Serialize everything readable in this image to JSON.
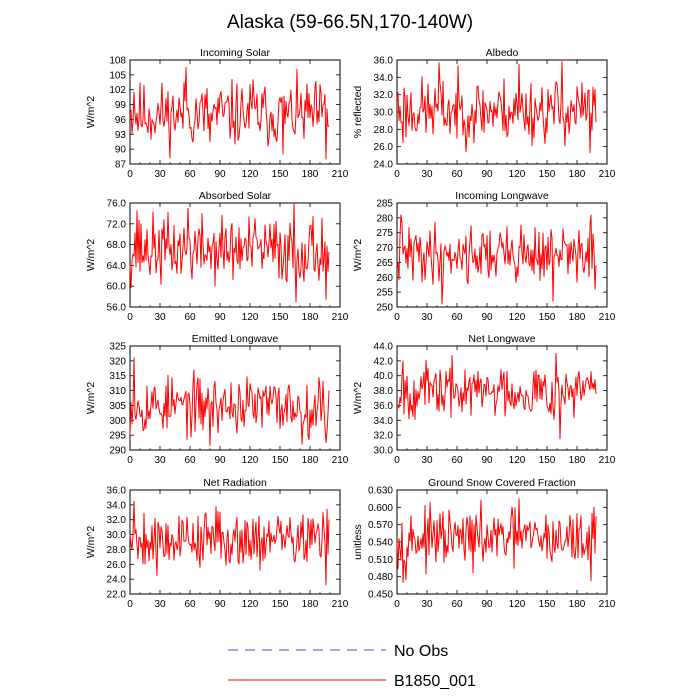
{
  "title": "Alaska (59-66.5N,170-140W)",
  "legend": [
    {
      "label": "No Obs",
      "color": "#4a4ac8",
      "dash": true
    },
    {
      "label": "B1850_001",
      "color": "#ff0000",
      "dash": false
    }
  ],
  "chart_data": [
    {
      "type": "line",
      "title": "Incoming Solar",
      "ylabel": "W/m^2",
      "xlim": [
        0,
        210
      ],
      "xticks": [
        0,
        30,
        60,
        90,
        120,
        150,
        180,
        210
      ],
      "ylim": [
        87,
        108
      ],
      "yticks": [
        87,
        90,
        93,
        96,
        99,
        102,
        105,
        108
      ],
      "ydec": 0,
      "series": [
        {
          "name": "B1850_001",
          "mean": 97,
          "amp": 4,
          "seed": 11,
          "points": [
            [
              0,
              97
            ],
            [
              4,
              101.5
            ],
            [
              56,
              106.5
            ],
            [
              80,
              91.5
            ],
            [
              123,
              104
            ],
            [
              153,
              89
            ],
            [
              196,
              88
            ]
          ]
        }
      ]
    },
    {
      "type": "line",
      "title": "Albedo",
      "ylabel": "% reflected",
      "xlim": [
        0,
        210
      ],
      "xticks": [
        0,
        30,
        60,
        90,
        120,
        150,
        180,
        210
      ],
      "ylim": [
        24,
        36
      ],
      "yticks": [
        24,
        26,
        28,
        30,
        32,
        34,
        36
      ],
      "ydec": 1,
      "series": [
        {
          "name": "B1850_001",
          "mean": 30.2,
          "amp": 2.3,
          "seed": 23,
          "points": [
            [
              0,
              31.5
            ],
            [
              6,
              26.5
            ],
            [
              42,
              35.7
            ],
            [
              122,
              35.5
            ],
            [
              165,
              35.8
            ],
            [
              193,
              25.3
            ]
          ]
        }
      ]
    },
    {
      "type": "line",
      "title": "Absorbed Solar",
      "ylabel": "W/m^2",
      "xlim": [
        0,
        210
      ],
      "xticks": [
        0,
        30,
        60,
        90,
        120,
        150,
        180,
        210
      ],
      "ylim": [
        56,
        76
      ],
      "yticks": [
        56,
        60,
        64,
        68,
        72,
        76
      ],
      "ydec": 1,
      "series": [
        {
          "name": "B1850_001",
          "mean": 67,
          "amp": 4,
          "seed": 37,
          "points": [
            [
              0,
              64
            ],
            [
              7,
              74.5
            ],
            [
              58,
              75
            ],
            [
              164,
              76
            ],
            [
              166,
              57
            ],
            [
              196,
              57.5
            ]
          ]
        }
      ]
    },
    {
      "type": "line",
      "title": "Incoming Longwave",
      "ylabel": "W/m^2",
      "xlim": [
        0,
        210
      ],
      "xticks": [
        0,
        30,
        60,
        90,
        120,
        150,
        180,
        210
      ],
      "ylim": [
        250,
        285
      ],
      "yticks": [
        250,
        255,
        260,
        265,
        270,
        275,
        280,
        285
      ],
      "ydec": 0,
      "series": [
        {
          "name": "B1850_001",
          "mean": 268,
          "amp": 6,
          "seed": 41,
          "points": [
            [
              0,
              265
            ],
            [
              4,
              281
            ],
            [
              45,
              251
            ],
            [
              156,
              252
            ],
            [
              194,
              281
            ],
            [
              198,
              256
            ]
          ]
        }
      ]
    },
    {
      "type": "line",
      "title": "Emitted Longwave",
      "ylabel": "W/m^2",
      "xlim": [
        0,
        210
      ],
      "xticks": [
        0,
        30,
        60,
        90,
        120,
        150,
        180,
        210
      ],
      "ylim": [
        290,
        325
      ],
      "yticks": [
        290,
        295,
        300,
        305,
        310,
        315,
        320,
        325
      ],
      "ydec": 0,
      "series": [
        {
          "name": "B1850_001",
          "mean": 305,
          "amp": 6,
          "seed": 53,
          "points": [
            [
              0,
              295
            ],
            [
              4,
              321
            ],
            [
              80,
              291.5
            ],
            [
              172,
              292
            ],
            [
              196,
              292.5
            ],
            [
              199,
              310
            ]
          ]
        }
      ]
    },
    {
      "type": "line",
      "title": "Net Longwave",
      "ylabel": "W/m^2",
      "xlim": [
        0,
        210
      ],
      "xticks": [
        0,
        30,
        60,
        90,
        120,
        150,
        180,
        210
      ],
      "ylim": [
        30,
        44
      ],
      "yticks": [
        30,
        32,
        34,
        36,
        38,
        40,
        42,
        44
      ],
      "ydec": 1,
      "series": [
        {
          "name": "B1850_001",
          "mean": 38,
          "amp": 2.2,
          "seed": 67,
          "points": [
            [
              0,
              36
            ],
            [
              6,
              42
            ],
            [
              159,
              43
            ],
            [
              163,
              31.5
            ],
            [
              196,
              39
            ]
          ]
        }
      ]
    },
    {
      "type": "line",
      "title": "Net Radiation",
      "ylabel": "W/m^2",
      "xlim": [
        0,
        210
      ],
      "xticks": [
        0,
        30,
        60,
        90,
        120,
        150,
        180,
        210
      ],
      "ylim": [
        22,
        36
      ],
      "yticks": [
        22,
        24,
        26,
        28,
        30,
        32,
        34,
        36
      ],
      "ydec": 1,
      "series": [
        {
          "name": "B1850_001",
          "mean": 29.5,
          "amp": 2.4,
          "seed": 79,
          "points": [
            [
              0,
              30
            ],
            [
              4,
              34.5
            ],
            [
              27,
              24.5
            ],
            [
              196,
              23.2
            ],
            [
              199,
              32
            ]
          ]
        }
      ]
    },
    {
      "type": "line",
      "title": "Ground Snow Covered Fraction",
      "ylabel": "unitless",
      "xlim": [
        0,
        210
      ],
      "xticks": [
        0,
        30,
        60,
        90,
        120,
        150,
        180,
        210
      ],
      "ylim": [
        0.45,
        0.63
      ],
      "yticks": [
        0.45,
        0.48,
        0.51,
        0.54,
        0.57,
        0.6,
        0.63
      ],
      "ydec": 3,
      "series": [
        {
          "name": "B1850_001",
          "mean": 0.545,
          "amp": 0.03,
          "seed": 97,
          "points": [
            [
              0,
              0.54
            ],
            [
              6,
              0.47
            ],
            [
              122,
              0.615
            ],
            [
              194,
              0.473
            ],
            [
              197,
              0.6
            ]
          ]
        }
      ]
    }
  ]
}
